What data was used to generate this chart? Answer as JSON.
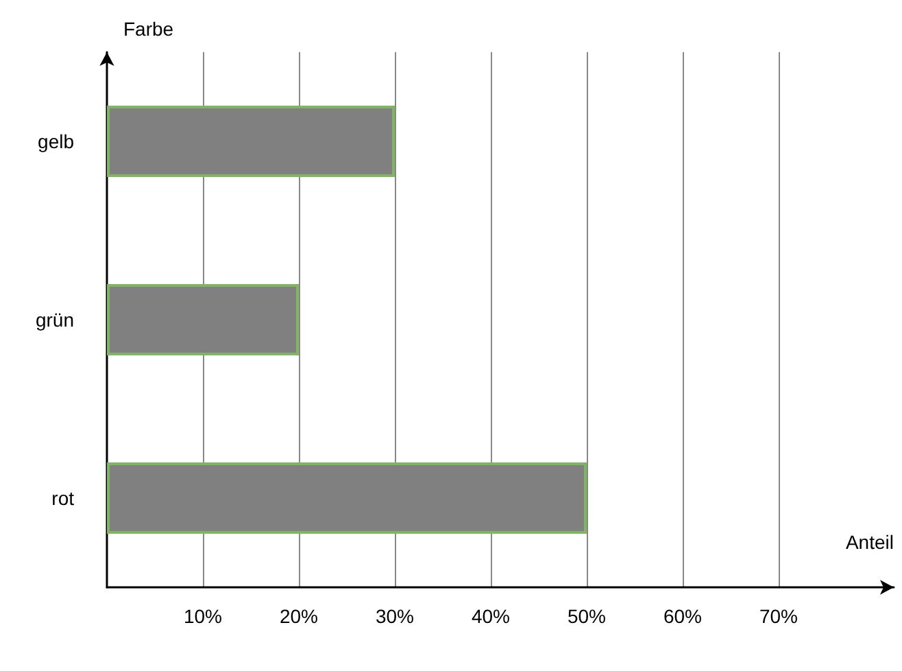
{
  "chart_data": {
    "type": "bar",
    "orientation": "horizontal",
    "xlabel": "Anteil",
    "ylabel": "Farbe",
    "categories": [
      "gelb",
      "grün",
      "rot"
    ],
    "values": [
      30,
      20,
      50
    ],
    "color": "#808080",
    "xlim": [
      0,
      82
    ],
    "xticks": [
      {
        "value": 10,
        "label": "10%"
      },
      {
        "value": 20,
        "label": "20%"
      },
      {
        "value": 30,
        "label": "30%"
      },
      {
        "value": 40,
        "label": "40%"
      },
      {
        "value": 50,
        "label": "50%"
      },
      {
        "value": 60,
        "label": "60%"
      },
      {
        "value": 70,
        "label": "70%"
      }
    ],
    "grid": "x"
  }
}
